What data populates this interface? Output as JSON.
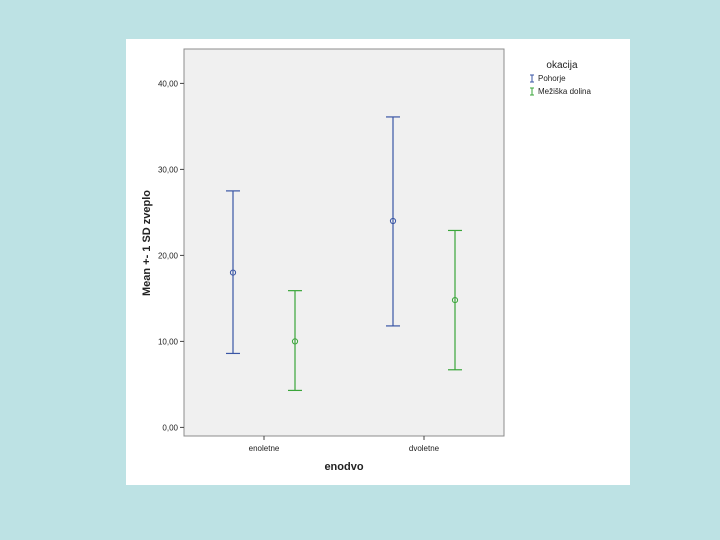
{
  "chart_data": {
    "type": "errorbar",
    "title": "",
    "xlabel": "enodvo",
    "ylabel": "Mean +- 1 SD zveplo",
    "categories": [
      "enoletne",
      "dvoletne"
    ],
    "ylim": [
      -1,
      44
    ],
    "yticks": [
      0,
      10,
      20,
      30,
      40
    ],
    "ytick_labels": [
      "0,00",
      "10,00",
      "20,00",
      "30,00",
      "40,00"
    ],
    "grid": false,
    "legend": {
      "title": "okacija",
      "placement": "outside-top-right"
    },
    "series": [
      {
        "name": "Pohorje",
        "color": "#3a56a5",
        "mean": [
          18.0,
          24.0
        ],
        "lower": [
          8.6,
          11.8
        ],
        "upper": [
          27.5,
          36.1
        ]
      },
      {
        "name": "Mežiška dolina",
        "color": "#3aa53a",
        "mean": [
          10.0,
          14.8
        ],
        "lower": [
          4.3,
          6.7
        ],
        "upper": [
          15.9,
          22.9
        ]
      }
    ]
  }
}
